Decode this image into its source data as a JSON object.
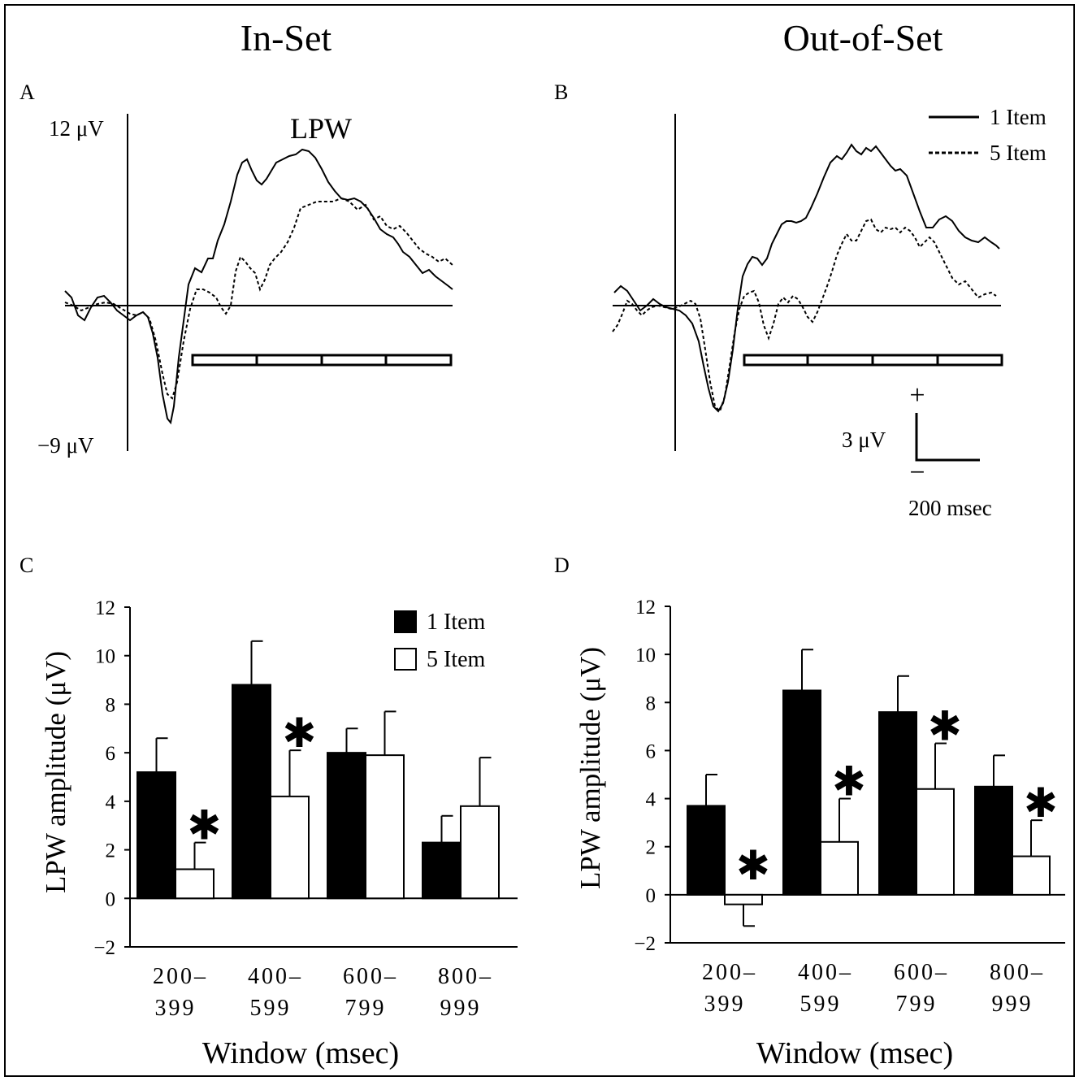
{
  "titles": {
    "left": "In-Set",
    "right": "Out-of-Set"
  },
  "panel_labels": {
    "a": "A",
    "b": "B",
    "c": "C",
    "d": "D"
  },
  "erp": {
    "top_label": "12 μV",
    "bottom_label": "−9 μV",
    "component_label": "LPW",
    "scale_v_label": "3 μV",
    "scale_t_label": "200 msec",
    "plus_sign": "+",
    "minus_sign": "−",
    "legend": {
      "solid": "1 Item",
      "dashed": "5 Item"
    }
  },
  "colors": {
    "item1": "#000000",
    "item5": "#ffffff"
  },
  "chart_data": [
    {
      "type": "bar",
      "panel": "C",
      "categories": [
        "200–\n399",
        "400–\n599",
        "600–\n799",
        "800–\n999"
      ],
      "category_lines": [
        [
          "200–",
          "399"
        ],
        [
          "400–",
          "599"
        ],
        [
          "600–",
          "799"
        ],
        [
          "800–",
          "999"
        ]
      ],
      "series": [
        {
          "name": "1 Item",
          "values": [
            5.2,
            8.8,
            6.0,
            2.3
          ],
          "errors": [
            1.4,
            1.8,
            1.0,
            1.1
          ],
          "color": "#000000"
        },
        {
          "name": "5 Item",
          "values": [
            1.2,
            4.2,
            5.9,
            3.8
          ],
          "errors": [
            1.1,
            1.9,
            1.8,
            2.0
          ],
          "color": "#ffffff"
        }
      ],
      "significant": [
        true,
        true,
        false,
        false
      ],
      "significance_marker": "✱",
      "ylabel": "LPW amplitude (μV)",
      "xlabel": "Window (msec)",
      "ylim": [
        -2,
        12
      ],
      "yticks": [
        -2,
        0,
        2,
        4,
        6,
        8,
        10,
        12
      ],
      "ytick_labels": [
        "−2",
        "0",
        "2",
        "4",
        "6",
        "8",
        "10",
        "12"
      ],
      "legend": "top-right"
    },
    {
      "type": "bar",
      "panel": "D",
      "categories": [
        "200–\n399",
        "400–\n599",
        "600–\n799",
        "800–\n999"
      ],
      "category_lines": [
        [
          "200–",
          "399"
        ],
        [
          "400–",
          "599"
        ],
        [
          "600–",
          "799"
        ],
        [
          "800–",
          "999"
        ]
      ],
      "series": [
        {
          "name": "1 Item",
          "values": [
            3.7,
            8.5,
            7.6,
            4.5
          ],
          "errors": [
            1.3,
            1.7,
            1.5,
            1.3
          ],
          "color": "#000000"
        },
        {
          "name": "5 Item",
          "values": [
            -0.4,
            2.2,
            4.4,
            1.6
          ],
          "errors": [
            0.9,
            1.8,
            1.9,
            1.5
          ],
          "color": "#ffffff"
        }
      ],
      "significant": [
        true,
        true,
        true,
        true
      ],
      "significance_marker": "✱",
      "ylabel": "LPW amplitude (μV)",
      "xlabel": "Window (msec)",
      "ylim": [
        -2,
        12
      ],
      "yticks": [
        -2,
        0,
        2,
        4,
        6,
        8,
        10,
        12
      ],
      "ytick_labels": [
        "−2",
        "0",
        "2",
        "4",
        "6",
        "8",
        "10",
        "12"
      ]
    }
  ]
}
